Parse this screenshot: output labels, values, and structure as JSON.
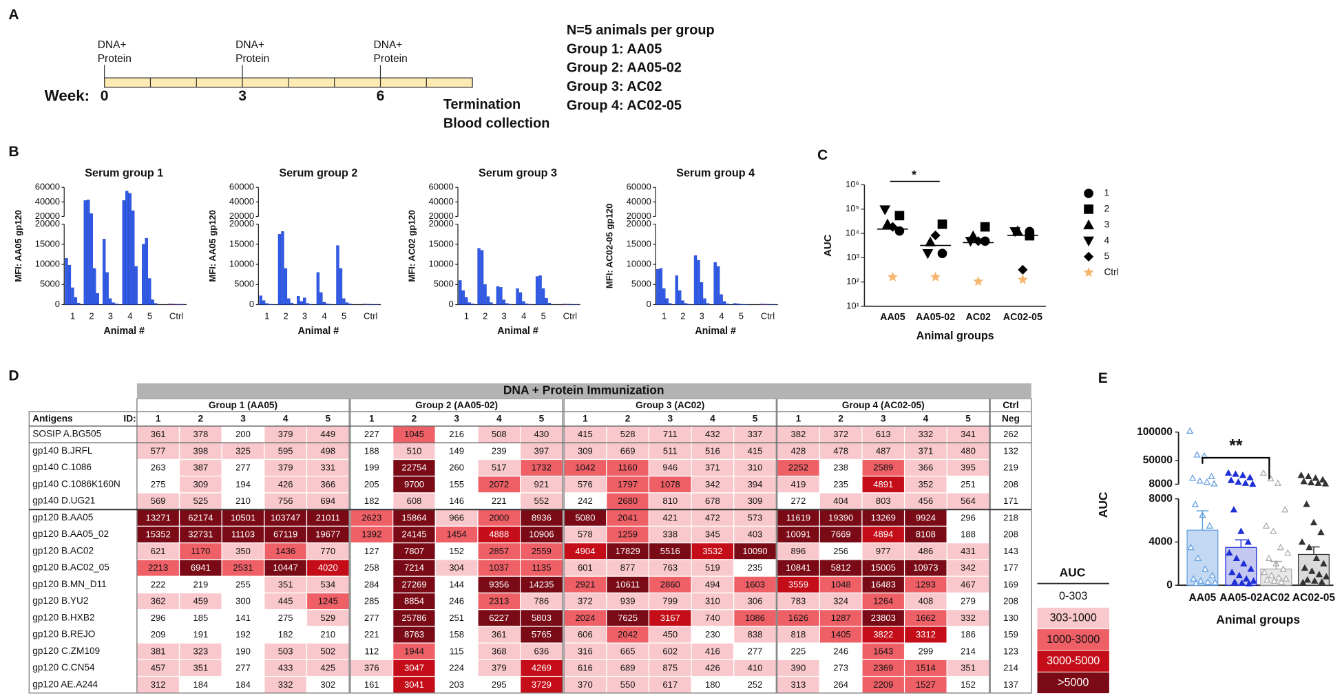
{
  "panel_labels": [
    "A",
    "B",
    "C",
    "D",
    "E"
  ],
  "timeline": {
    "label": "Week:",
    "xlim": [
      0,
      8
    ],
    "labeled_weeks": [
      0,
      3,
      6
    ],
    "segment_weeks": [
      1,
      2,
      3,
      4,
      5,
      6,
      7
    ],
    "doses": [
      {
        "week": 0,
        "text": [
          "DNA+",
          "Protein"
        ]
      },
      {
        "week": 3,
        "text": [
          "DNA+",
          "Protein"
        ]
      },
      {
        "week": 6,
        "text": [
          "DNA+",
          "Protein"
        ]
      }
    ],
    "end_text": [
      "Termination",
      "Blood collection"
    ]
  },
  "design": [
    "N=5 animals per group",
    "Group 1: AA05",
    "Group 2: AA05-02",
    "Group 3: AC02",
    "Group 4: AC02-05"
  ],
  "chart_data": [
    {
      "type": "bar",
      "title": "Serum group 1",
      "ylabel": "MFI: AA05 gp120",
      "xlabel": "Animal #",
      "categories": [
        "1",
        "2",
        "3",
        "4",
        "5",
        "Ctrl"
      ],
      "values": [
        [
          11500,
          9800,
          4200,
          1800,
          400
        ],
        [
          42000,
          43000,
          24000,
          9000,
          2800
        ],
        [
          16300,
          8000,
          1500,
          500,
          200
        ],
        [
          42000,
          55000,
          52000,
          28000,
          9500
        ],
        [
          15000,
          16500,
          6500,
          1200,
          300
        ],
        [
          200,
          150,
          100,
          100,
          80
        ]
      ],
      "colors": [
        "#2f5be8",
        "#2f5be8",
        "#2f5be8",
        "#2f5be8",
        "#2f5be8",
        "#e8383d"
      ],
      "ylim_lower": [
        0,
        20000
      ],
      "yticks_lower": [
        0,
        5000,
        10000,
        15000,
        20000
      ],
      "ylim_upper": [
        20000,
        60000
      ],
      "yticks_upper": [
        20000,
        40000,
        60000
      ]
    },
    {
      "type": "bar",
      "title": "Serum group 2",
      "ylabel": "MFI: AA05 gp120",
      "xlabel": "Animal #",
      "categories": [
        "1",
        "2",
        "3",
        "4",
        "5",
        "Ctrl"
      ],
      "values": [
        [
          2200,
          1000,
          300,
          100,
          50
        ],
        [
          17500,
          18200,
          9000,
          1500,
          400
        ],
        [
          2100,
          800,
          1700,
          300,
          100
        ],
        [
          8000,
          3000,
          600,
          200,
          100
        ],
        [
          14700,
          9000,
          1500,
          500,
          200
        ],
        [
          150,
          100,
          80,
          60,
          50
        ]
      ],
      "colors": [
        "#2f5be8",
        "#2f5be8",
        "#2f5be8",
        "#2f5be8",
        "#2f5be8",
        "#e8383d"
      ],
      "ylim_lower": [
        0,
        20000
      ],
      "yticks_lower": [
        0,
        5000,
        10000,
        15000,
        20000
      ],
      "ylim_upper": [
        20000,
        60000
      ],
      "yticks_upper": [
        20000,
        40000,
        60000
      ]
    },
    {
      "type": "bar",
      "title": "Serum group 3",
      "ylabel": "MFI: AC02 gp120",
      "xlabel": "Animal #",
      "categories": [
        "1",
        "2",
        "3",
        "4",
        "5",
        "Ctrl"
      ],
      "values": [
        [
          6000,
          3500,
          1800,
          500,
          200
        ],
        [
          14000,
          13500,
          5000,
          2000,
          500
        ],
        [
          4500,
          4300,
          1200,
          300,
          100
        ],
        [
          4000,
          3000,
          800,
          200,
          100
        ],
        [
          7000,
          7200,
          4000,
          1600,
          400
        ],
        [
          150,
          120,
          90,
          70,
          50
        ]
      ],
      "colors": [
        "#2f5be8",
        "#2f5be8",
        "#2f5be8",
        "#2f5be8",
        "#2f5be8",
        "#e8383d"
      ],
      "ylim_lower": [
        0,
        20000
      ],
      "yticks_lower": [
        0,
        5000,
        10000,
        15000,
        20000
      ],
      "ylim_upper": [
        20000,
        60000
      ],
      "yticks_upper": [
        20000,
        40000,
        60000
      ]
    },
    {
      "type": "bar",
      "title": "Serum group 4",
      "ylabel": "MFI: AC02-05 gp120",
      "xlabel": "Animal #",
      "categories": [
        "1",
        "2",
        "3",
        "4",
        "5",
        "Ctrl"
      ],
      "values": [
        [
          8800,
          9000,
          4000,
          1500,
          300
        ],
        [
          7200,
          3500,
          1000,
          300,
          100
        ],
        [
          12200,
          11000,
          5500,
          1500,
          300
        ],
        [
          10500,
          9500,
          2500,
          800,
          200
        ],
        [
          300,
          200,
          100,
          80,
          50
        ],
        [
          150,
          120,
          90,
          70,
          50
        ]
      ],
      "colors": [
        "#2f5be8",
        "#2f5be8",
        "#2f5be8",
        "#2f5be8",
        "#2f5be8",
        "#e8383d"
      ],
      "ylim_lower": [
        0,
        20000
      ],
      "yticks_lower": [
        0,
        5000,
        10000,
        15000,
        20000
      ],
      "ylim_upper": [
        20000,
        60000
      ],
      "yticks_upper": [
        20000,
        40000,
        60000
      ]
    },
    {
      "type": "scatter",
      "ylabel": "AUC",
      "xlabel": "Animal  groups",
      "categories": [
        "AA05",
        "AA05-02",
        "AC02",
        "AC02-05"
      ],
      "log_scale": true,
      "ylim": [
        10,
        1000000
      ],
      "yticks": [
        {
          "value": 10,
          "label": "10¹"
        },
        {
          "value": 100,
          "label": "10²"
        },
        {
          "value": 1000,
          "label": "10³"
        },
        {
          "value": 10000,
          "label": "10⁴"
        },
        {
          "value": 100000,
          "label": "10⁵"
        },
        {
          "value": 1000000,
          "label": "10⁶"
        }
      ],
      "series": [
        {
          "name": "1",
          "marker": "circle",
          "color": "#000000",
          "values": [
            12600,
            1500,
            4800,
            12000
          ]
        },
        {
          "name": "2",
          "marker": "square",
          "color": "#000000",
          "values": [
            54000,
            24000,
            18600,
            8000
          ]
        },
        {
          "name": "3",
          "marker": "triangle",
          "color": "#000000",
          "values": [
            24000,
            4400,
            7800,
            12600
          ]
        },
        {
          "name": "4",
          "marker": "triangle-down",
          "color": "#000000",
          "values": [
            95000,
            1500,
            4800,
            12000
          ]
        },
        {
          "name": "5",
          "marker": "diamond",
          "color": "#000000",
          "values": [
            18600,
            8300,
            4800,
            320
          ]
        },
        {
          "name": "Ctrl",
          "marker": "star",
          "color": "#f5b56e",
          "values": [
            160,
            160,
            105,
            125
          ]
        }
      ],
      "medians": [
        15000,
        3200,
        4200,
        8300
      ],
      "annotations": [
        {
          "text": "*",
          "from": 0,
          "to": 1
        }
      ]
    },
    {
      "type": "bar_scatter",
      "ylabel": "AUC",
      "xlabel": "Animal  groups",
      "categories": [
        "AA05",
        "AA05-02",
        "AC02",
        "AC02-05"
      ],
      "values": [
        5100,
        3500,
        1500,
        2850
      ],
      "errors": [
        1790,
        700,
        700,
        700
      ],
      "points": [
        [
          102000,
          60000,
          58000,
          22000,
          19000,
          14000,
          12000,
          9000,
          7500,
          6500,
          5500,
          3500,
          2500,
          1500,
          900,
          600,
          400,
          300,
          250,
          200
        ],
        [
          28000,
          26000,
          24000,
          20000,
          15000,
          12000,
          10000,
          8500,
          7000,
          5000,
          4000,
          3000,
          2500,
          2000,
          1500,
          1200,
          900,
          600,
          400,
          300,
          200,
          150
        ],
        [
          28000,
          18000,
          10000,
          7000,
          5500,
          5000,
          3500,
          3000,
          2500,
          2000,
          1500,
          1200,
          900,
          700,
          600,
          500,
          400,
          300
        ],
        [
          24000,
          22000,
          19000,
          16000,
          13000,
          11000,
          10000,
          9000,
          7500,
          5800,
          4900,
          4000,
          3500,
          2500,
          2000,
          1600,
          1300,
          1000,
          800,
          500,
          400,
          300,
          250
        ]
      ],
      "colors": [
        "#c3d8f3",
        "#c5c8f0",
        "#e8e8e8",
        "#dadada"
      ],
      "edge_colors": [
        "#5f9ee0",
        "#1f2fd6",
        "#a8a8a8",
        "#333333"
      ],
      "point_filled": [
        false,
        true,
        false,
        true
      ],
      "ylim_lower": [
        0,
        8000
      ],
      "yticks_lower": [
        0,
        4000,
        8000
      ],
      "ylim_upper": [
        8000,
        100000
      ],
      "yticks_upper": [
        8000,
        50000,
        100000
      ],
      "annotations": [
        {
          "text": "**",
          "from": 0,
          "to": 2
        }
      ]
    }
  ],
  "heatmap": {
    "title": "DNA + Protein Immunization",
    "groups": [
      "Group 1 (AA05)",
      "Group 2 (AA05-02)",
      "Group 3 (AC02)",
      "Group 4 (AC02-05)"
    ],
    "ctrl_header": "Ctrl",
    "ctrl_sub": "Neg",
    "antigens_header": "Antigens",
    "id_label": "ID:",
    "ids": [
      1,
      2,
      3,
      4,
      5
    ],
    "rows": [
      {
        "antigen": "SOSIP A.BG505",
        "values": [
          361,
          378,
          200,
          379,
          449,
          227,
          1045,
          216,
          508,
          430,
          415,
          528,
          711,
          432,
          337,
          382,
          372,
          613,
          332,
          341
        ],
        "ctrl": 262
      },
      {
        "antigen": "gp140 B.JRFL",
        "values": [
          577,
          398,
          325,
          595,
          498,
          188,
          510,
          149,
          239,
          397,
          309,
          669,
          511,
          516,
          415,
          428,
          478,
          487,
          371,
          480
        ],
        "ctrl": 132
      },
      {
        "antigen": "gp140 C.1086",
        "values": [
          263,
          387,
          277,
          379,
          331,
          199,
          22754,
          260,
          517,
          1732,
          1042,
          1160,
          946,
          371,
          310,
          2252,
          238,
          2589,
          366,
          395
        ],
        "ctrl": 219
      },
      {
        "antigen": "gp140 C.1086K160N",
        "values": [
          275,
          309,
          194,
          426,
          366,
          205,
          9700,
          155,
          2072,
          921,
          576,
          1797,
          1078,
          342,
          394,
          419,
          235,
          4891,
          352,
          251
        ],
        "ctrl": 208
      },
      {
        "antigen": "gp140 D.UG21",
        "values": [
          569,
          525,
          210,
          756,
          694,
          182,
          608,
          146,
          221,
          552,
          242,
          2680,
          810,
          678,
          309,
          272,
          404,
          803,
          456,
          564
        ],
        "ctrl": 171
      },
      {
        "antigen": "gp120 B.AA05",
        "values": [
          13271,
          62174,
          10501,
          103747,
          21011,
          2623,
          15864,
          966,
          2000,
          8936,
          5080,
          2041,
          421,
          472,
          573,
          11619,
          19390,
          13269,
          9924,
          296
        ],
        "ctrl": 218
      },
      {
        "antigen": "gp120 B.AA05_02",
        "values": [
          15352,
          32731,
          11103,
          67119,
          19677,
          1392,
          24145,
          1454,
          4888,
          10906,
          578,
          1259,
          338,
          345,
          403,
          10091,
          7669,
          4894,
          8108,
          188
        ],
        "ctrl": 208
      },
      {
        "antigen": "gp120 B.AC02",
        "values": [
          621,
          1170,
          350,
          1436,
          770,
          127,
          7807,
          152,
          2857,
          2559,
          4904,
          17829,
          5516,
          3532,
          10090,
          896,
          256,
          977,
          486,
          431
        ],
        "ctrl": 143
      },
      {
        "antigen": "gp120 B.AC02_05",
        "values": [
          2213,
          6941,
          2531,
          10447,
          4020,
          258,
          7214,
          304,
          1037,
          1135,
          601,
          877,
          763,
          519,
          235,
          10841,
          5812,
          15005,
          10973,
          342
        ],
        "ctrl": 177
      },
      {
        "antigen": "gp120 B.MN_D11",
        "values": [
          222,
          219,
          255,
          351,
          534,
          284,
          27269,
          144,
          9356,
          14235,
          2921,
          10611,
          2860,
          494,
          1603,
          3559,
          1048,
          16483,
          1293,
          467
        ],
        "ctrl": 169
      },
      {
        "antigen": "gp120 B.YU2",
        "values": [
          362,
          459,
          300,
          445,
          1245,
          285,
          8854,
          246,
          2313,
          786,
          372,
          939,
          799,
          310,
          306,
          783,
          324,
          1264,
          408,
          279
        ],
        "ctrl": 208
      },
      {
        "antigen": "gp120 B.HXB2",
        "values": [
          296,
          185,
          141,
          275,
          529,
          277,
          25786,
          251,
          6227,
          5803,
          2024,
          7625,
          3167,
          740,
          1086,
          1626,
          1287,
          23803,
          1662,
          332
        ],
        "ctrl": 130
      },
      {
        "antigen": "gp120 B.REJO",
        "values": [
          209,
          191,
          192,
          182,
          210,
          221,
          8763,
          158,
          361,
          5765,
          606,
          2042,
          450,
          230,
          838,
          818,
          1405,
          3822,
          3312,
          186
        ],
        "ctrl": 159
      },
      {
        "antigen": "gp120 C.ZM109",
        "values": [
          381,
          323,
          190,
          503,
          502,
          112,
          1944,
          115,
          368,
          636,
          316,
          665,
          602,
          416,
          277,
          225,
          246,
          1643,
          299,
          214
        ],
        "ctrl": 123
      },
      {
        "antigen": "gp120 C.CN54",
        "values": [
          457,
          351,
          277,
          433,
          425,
          376,
          3047,
          224,
          379,
          4269,
          616,
          689,
          875,
          426,
          410,
          390,
          273,
          2369,
          1514,
          351
        ],
        "ctrl": 214
      },
      {
        "antigen": "gp120 AE.A244",
        "values": [
          312,
          184,
          184,
          332,
          302,
          161,
          3041,
          203,
          295,
          3729,
          370,
          550,
          617,
          180,
          252,
          313,
          264,
          2209,
          1527,
          152
        ],
        "ctrl": 137
      }
    ],
    "legend": {
      "title": "AUC",
      "bins": [
        {
          "label": "0-303",
          "lo": 0,
          "hi": 303,
          "color": "#ffffff",
          "text_color": "#111111"
        },
        {
          "label": "303-1000",
          "lo": 303,
          "hi": 1000,
          "color": "#f9c8cc",
          "text_color": "#111111"
        },
        {
          "label": "1000-3000",
          "lo": 1000,
          "hi": 3000,
          "color": "#ee5f66",
          "text_color": "#111111"
        },
        {
          "label": "3000-5000",
          "lo": 3000,
          "hi": 5000,
          "color": "#c40d18",
          "text_color": "#ffffff"
        },
        {
          "label": ">5000",
          "lo": 5000,
          "hi": null,
          "color": "#7a0a16",
          "text_color": "#ffffff"
        }
      ]
    }
  }
}
